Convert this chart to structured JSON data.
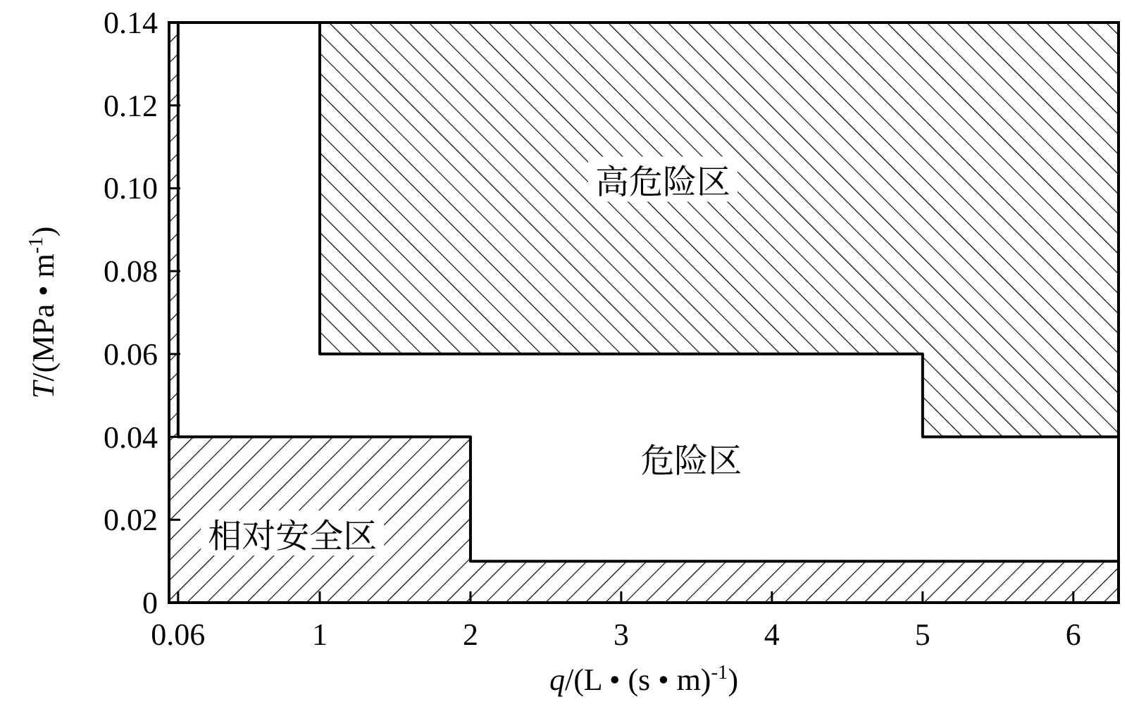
{
  "chart_data": {
    "type": "area",
    "xlabel": "q/(L • (s • m)$^{-1}$)",
    "ylabel": "T/(MPa • m$^{-1}$)",
    "xlim": [
      0,
      6.3
    ],
    "ylim": [
      0,
      0.14
    ],
    "xticks": [
      0.06,
      1,
      2,
      3,
      4,
      5,
      6
    ],
    "yticks": [
      0,
      0.02,
      0.04,
      0.06,
      0.08,
      {
        "value": 0.1,
        "label": "0.10"
      },
      0.12,
      0.14
    ],
    "series": [
      {
        "color": "#000000",
        "x": [
          1,
          6.3
        ],
        "values": [
          0.14,
          0.14
        ]
      },
      {
        "color": "#ffffff",
        "x": [
          0.06,
          1,
          1,
          5,
          5,
          6.3
        ],
        "values": [
          0.14,
          0.14,
          0.06,
          0.06,
          0.04,
          0.04
        ]
      },
      {
        "color": "#000000",
        "x": [
          0,
          0.06,
          0.06,
          2,
          2,
          6.3
        ],
        "values": [
          0.14,
          0.14,
          0.04,
          0.04,
          0.01,
          0.01
        ]
      }
    ],
    "annotations": [
      "高危险区",
      "危险区",
      "相对安全区"
    ]
  }
}
